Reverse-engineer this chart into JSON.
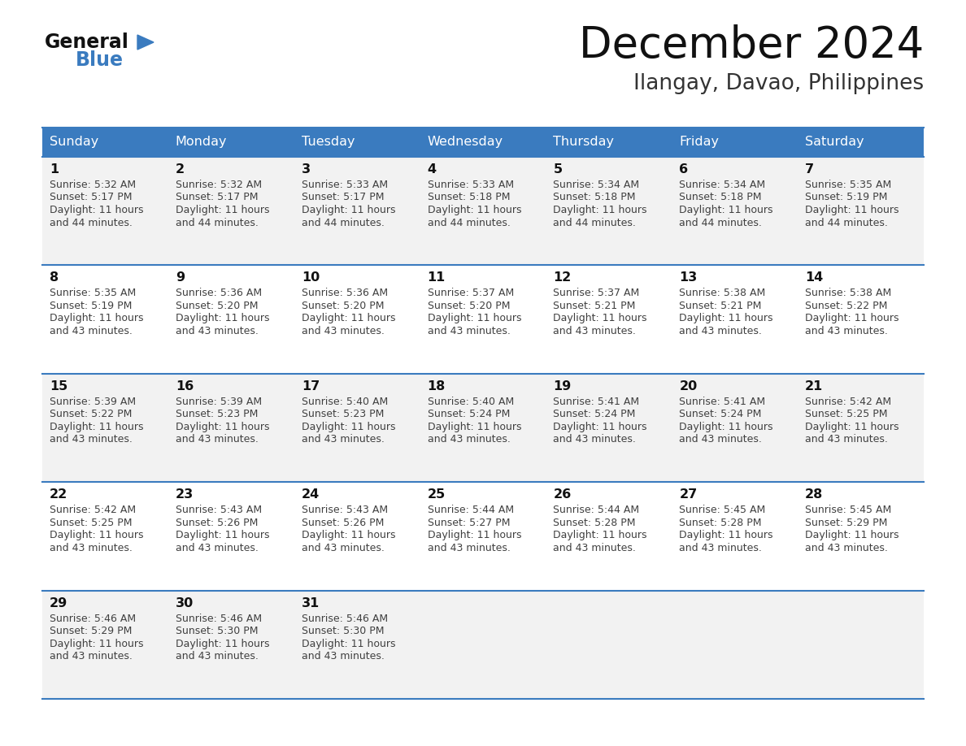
{
  "title": "December 2024",
  "subtitle": "Ilangay, Davao, Philippines",
  "header_color": "#3a7bbf",
  "header_text_color": "#ffffff",
  "cell_bg_even": "#f2f2f2",
  "cell_bg_odd": "#ffffff",
  "day_number_color": "#000000",
  "cell_text_color": "#404040",
  "border_color": "#3a7bbf",
  "days_of_week": [
    "Sunday",
    "Monday",
    "Tuesday",
    "Wednesday",
    "Thursday",
    "Friday",
    "Saturday"
  ],
  "weeks": [
    [
      {
        "day": 1,
        "sunrise": "5:32 AM",
        "sunset": "5:17 PM",
        "daylight": "11 hours and 44 minutes."
      },
      {
        "day": 2,
        "sunrise": "5:32 AM",
        "sunset": "5:17 PM",
        "daylight": "11 hours and 44 minutes."
      },
      {
        "day": 3,
        "sunrise": "5:33 AM",
        "sunset": "5:17 PM",
        "daylight": "11 hours and 44 minutes."
      },
      {
        "day": 4,
        "sunrise": "5:33 AM",
        "sunset": "5:18 PM",
        "daylight": "11 hours and 44 minutes."
      },
      {
        "day": 5,
        "sunrise": "5:34 AM",
        "sunset": "5:18 PM",
        "daylight": "11 hours and 44 minutes."
      },
      {
        "day": 6,
        "sunrise": "5:34 AM",
        "sunset": "5:18 PM",
        "daylight": "11 hours and 44 minutes."
      },
      {
        "day": 7,
        "sunrise": "5:35 AM",
        "sunset": "5:19 PM",
        "daylight": "11 hours and 44 minutes."
      }
    ],
    [
      {
        "day": 8,
        "sunrise": "5:35 AM",
        "sunset": "5:19 PM",
        "daylight": "11 hours and 43 minutes."
      },
      {
        "day": 9,
        "sunrise": "5:36 AM",
        "sunset": "5:20 PM",
        "daylight": "11 hours and 43 minutes."
      },
      {
        "day": 10,
        "sunrise": "5:36 AM",
        "sunset": "5:20 PM",
        "daylight": "11 hours and 43 minutes."
      },
      {
        "day": 11,
        "sunrise": "5:37 AM",
        "sunset": "5:20 PM",
        "daylight": "11 hours and 43 minutes."
      },
      {
        "day": 12,
        "sunrise": "5:37 AM",
        "sunset": "5:21 PM",
        "daylight": "11 hours and 43 minutes."
      },
      {
        "day": 13,
        "sunrise": "5:38 AM",
        "sunset": "5:21 PM",
        "daylight": "11 hours and 43 minutes."
      },
      {
        "day": 14,
        "sunrise": "5:38 AM",
        "sunset": "5:22 PM",
        "daylight": "11 hours and 43 minutes."
      }
    ],
    [
      {
        "day": 15,
        "sunrise": "5:39 AM",
        "sunset": "5:22 PM",
        "daylight": "11 hours and 43 minutes."
      },
      {
        "day": 16,
        "sunrise": "5:39 AM",
        "sunset": "5:23 PM",
        "daylight": "11 hours and 43 minutes."
      },
      {
        "day": 17,
        "sunrise": "5:40 AM",
        "sunset": "5:23 PM",
        "daylight": "11 hours and 43 minutes."
      },
      {
        "day": 18,
        "sunrise": "5:40 AM",
        "sunset": "5:24 PM",
        "daylight": "11 hours and 43 minutes."
      },
      {
        "day": 19,
        "sunrise": "5:41 AM",
        "sunset": "5:24 PM",
        "daylight": "11 hours and 43 minutes."
      },
      {
        "day": 20,
        "sunrise": "5:41 AM",
        "sunset": "5:24 PM",
        "daylight": "11 hours and 43 minutes."
      },
      {
        "day": 21,
        "sunrise": "5:42 AM",
        "sunset": "5:25 PM",
        "daylight": "11 hours and 43 minutes."
      }
    ],
    [
      {
        "day": 22,
        "sunrise": "5:42 AM",
        "sunset": "5:25 PM",
        "daylight": "11 hours and 43 minutes."
      },
      {
        "day": 23,
        "sunrise": "5:43 AM",
        "sunset": "5:26 PM",
        "daylight": "11 hours and 43 minutes."
      },
      {
        "day": 24,
        "sunrise": "5:43 AM",
        "sunset": "5:26 PM",
        "daylight": "11 hours and 43 minutes."
      },
      {
        "day": 25,
        "sunrise": "5:44 AM",
        "sunset": "5:27 PM",
        "daylight": "11 hours and 43 minutes."
      },
      {
        "day": 26,
        "sunrise": "5:44 AM",
        "sunset": "5:28 PM",
        "daylight": "11 hours and 43 minutes."
      },
      {
        "day": 27,
        "sunrise": "5:45 AM",
        "sunset": "5:28 PM",
        "daylight": "11 hours and 43 minutes."
      },
      {
        "day": 28,
        "sunrise": "5:45 AM",
        "sunset": "5:29 PM",
        "daylight": "11 hours and 43 minutes."
      }
    ],
    [
      {
        "day": 29,
        "sunrise": "5:46 AM",
        "sunset": "5:29 PM",
        "daylight": "11 hours and 43 minutes."
      },
      {
        "day": 30,
        "sunrise": "5:46 AM",
        "sunset": "5:30 PM",
        "daylight": "11 hours and 43 minutes."
      },
      {
        "day": 31,
        "sunrise": "5:46 AM",
        "sunset": "5:30 PM",
        "daylight": "11 hours and 43 minutes."
      },
      null,
      null,
      null,
      null
    ]
  ],
  "logo_color_general": "#111111",
  "logo_color_blue": "#3a7bbf",
  "logo_triangle_color": "#3a7bbf",
  "fig_width": 11.88,
  "fig_height": 9.18,
  "dpi": 100
}
